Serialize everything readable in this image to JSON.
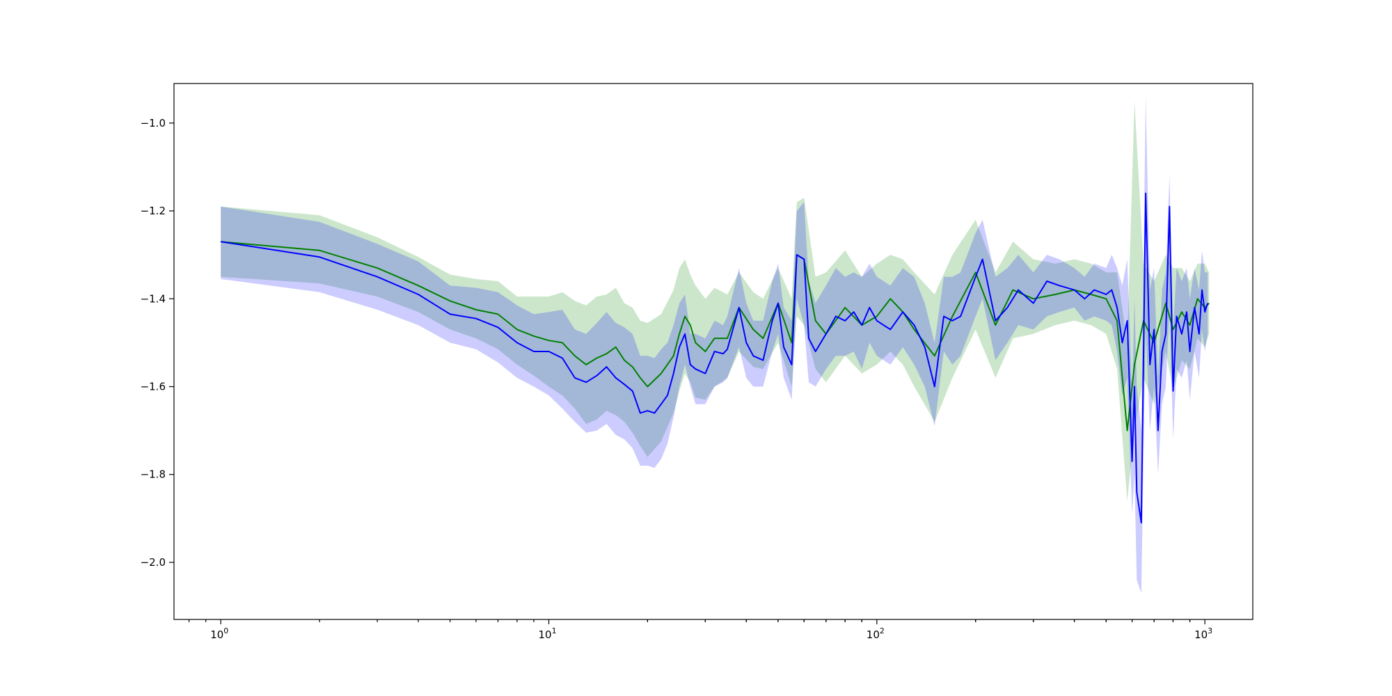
{
  "chart_data": {
    "type": "line",
    "title": "",
    "xlabel": "",
    "ylabel": "",
    "xscale": "log",
    "xlim": [
      0.72,
      1400
    ],
    "ylim": [
      -2.13,
      -0.91
    ],
    "grid": false,
    "legend": "none",
    "x_ticks": [
      {
        "value": 1,
        "base": "10",
        "exp": "0"
      },
      {
        "value": 10,
        "base": "10",
        "exp": "1"
      },
      {
        "value": 100,
        "base": "10",
        "exp": "2"
      },
      {
        "value": 1000,
        "base": "10",
        "exp": "3"
      }
    ],
    "y_ticks": [
      {
        "value": -1.0,
        "label": "−1.0"
      },
      {
        "value": -1.2,
        "label": "−1.2"
      },
      {
        "value": -1.4,
        "label": "−1.4"
      },
      {
        "value": -1.6,
        "label": "−1.6"
      },
      {
        "value": -1.8,
        "label": "−1.8"
      },
      {
        "value": -2.0,
        "label": "−2.0"
      }
    ],
    "series": [
      {
        "color": "#008000",
        "band_color": "#008000",
        "x": [
          1,
          2,
          3,
          4,
          5,
          6,
          7,
          8,
          9,
          10,
          11,
          12,
          13,
          14,
          15,
          16,
          17,
          18,
          19,
          20,
          22,
          24,
          25,
          26,
          27,
          28,
          30,
          32,
          35,
          38,
          42,
          45,
          50,
          55,
          57,
          60,
          65,
          70,
          80,
          90,
          100,
          110,
          120,
          130,
          150,
          170,
          200,
          230,
          260,
          300,
          350,
          400,
          450,
          500,
          540,
          580,
          610,
          650,
          700,
          760,
          800,
          850,
          900,
          950,
          1000,
          1030
        ],
        "y": [
          -1.27,
          -1.29,
          -1.33,
          -1.37,
          -1.405,
          -1.425,
          -1.435,
          -1.47,
          -1.485,
          -1.495,
          -1.5,
          -1.53,
          -1.55,
          -1.535,
          -1.525,
          -1.51,
          -1.54,
          -1.555,
          -1.58,
          -1.6,
          -1.57,
          -1.53,
          -1.48,
          -1.44,
          -1.46,
          -1.5,
          -1.52,
          -1.49,
          -1.49,
          -1.42,
          -1.47,
          -1.49,
          -1.41,
          -1.5,
          -1.3,
          -1.31,
          -1.45,
          -1.48,
          -1.42,
          -1.46,
          -1.44,
          -1.4,
          -1.43,
          -1.47,
          -1.53,
          -1.44,
          -1.34,
          -1.46,
          -1.38,
          -1.4,
          -1.39,
          -1.38,
          -1.39,
          -1.4,
          -1.45,
          -1.7,
          -1.55,
          -1.45,
          -1.5,
          -1.41,
          -1.47,
          -1.43,
          -1.46,
          -1.4,
          -1.42,
          -1.41
        ],
        "lower": [
          -1.35,
          -1.365,
          -1.395,
          -1.43,
          -1.47,
          -1.49,
          -1.515,
          -1.55,
          -1.575,
          -1.6,
          -1.62,
          -1.65,
          -1.685,
          -1.675,
          -1.655,
          -1.665,
          -1.68,
          -1.705,
          -1.735,
          -1.76,
          -1.725,
          -1.66,
          -1.61,
          -1.57,
          -1.59,
          -1.625,
          -1.63,
          -1.6,
          -1.58,
          -1.52,
          -1.555,
          -1.56,
          -1.5,
          -1.6,
          -1.44,
          -1.46,
          -1.56,
          -1.59,
          -1.53,
          -1.57,
          -1.55,
          -1.52,
          -1.55,
          -1.6,
          -1.68,
          -1.58,
          -1.47,
          -1.58,
          -1.49,
          -1.48,
          -1.46,
          -1.45,
          -1.46,
          -1.48,
          -1.56,
          -1.86,
          -1.7,
          -1.58,
          -1.64,
          -1.52,
          -1.61,
          -1.54,
          -1.56,
          -1.49,
          -1.51,
          -1.48
        ],
        "upper": [
          -1.19,
          -1.21,
          -1.26,
          -1.305,
          -1.345,
          -1.355,
          -1.36,
          -1.395,
          -1.395,
          -1.395,
          -1.385,
          -1.405,
          -1.415,
          -1.395,
          -1.39,
          -1.375,
          -1.41,
          -1.42,
          -1.45,
          -1.455,
          -1.435,
          -1.38,
          -1.33,
          -1.31,
          -1.345,
          -1.37,
          -1.4,
          -1.375,
          -1.39,
          -1.34,
          -1.385,
          -1.4,
          -1.33,
          -1.4,
          -1.18,
          -1.17,
          -1.35,
          -1.34,
          -1.29,
          -1.35,
          -1.32,
          -1.3,
          -1.31,
          -1.34,
          -1.39,
          -1.3,
          -1.22,
          -1.34,
          -1.27,
          -1.31,
          -1.32,
          -1.31,
          -1.32,
          -1.34,
          -1.34,
          -1.5,
          -0.95,
          -1.32,
          -1.36,
          -1.3,
          -1.33,
          -1.33,
          -1.36,
          -1.32,
          -1.32,
          -1.34
        ]
      },
      {
        "color": "#0000ff",
        "band_color": "#0000ff",
        "x": [
          1,
          2,
          3,
          4,
          5,
          6,
          7,
          8,
          9,
          10,
          11,
          12,
          13,
          14,
          15,
          16,
          17,
          18,
          19,
          20,
          21,
          22,
          23,
          24,
          25,
          26,
          27,
          28,
          30,
          32,
          34,
          35,
          38,
          40,
          42,
          45,
          48,
          50,
          52,
          55,
          57,
          60,
          62,
          65,
          70,
          75,
          80,
          85,
          90,
          95,
          100,
          110,
          120,
          130,
          140,
          150,
          160,
          170,
          180,
          200,
          210,
          230,
          250,
          270,
          300,
          330,
          360,
          400,
          430,
          460,
          500,
          520,
          540,
          560,
          580,
          600,
          610,
          620,
          640,
          660,
          680,
          700,
          720,
          740,
          760,
          780,
          800,
          820,
          850,
          880,
          900,
          930,
          960,
          980,
          1000,
          1020
        ],
        "y": [
          -1.27,
          -1.305,
          -1.35,
          -1.39,
          -1.435,
          -1.445,
          -1.465,
          -1.5,
          -1.52,
          -1.52,
          -1.535,
          -1.58,
          -1.59,
          -1.575,
          -1.555,
          -1.58,
          -1.595,
          -1.61,
          -1.66,
          -1.655,
          -1.66,
          -1.64,
          -1.62,
          -1.57,
          -1.51,
          -1.48,
          -1.55,
          -1.56,
          -1.57,
          -1.52,
          -1.525,
          -1.515,
          -1.42,
          -1.5,
          -1.53,
          -1.54,
          -1.45,
          -1.41,
          -1.51,
          -1.55,
          -1.3,
          -1.31,
          -1.49,
          -1.52,
          -1.48,
          -1.44,
          -1.45,
          -1.43,
          -1.46,
          -1.42,
          -1.45,
          -1.47,
          -1.43,
          -1.46,
          -1.51,
          -1.6,
          -1.44,
          -1.45,
          -1.44,
          -1.35,
          -1.31,
          -1.45,
          -1.42,
          -1.38,
          -1.41,
          -1.36,
          -1.37,
          -1.38,
          -1.4,
          -1.38,
          -1.39,
          -1.38,
          -1.42,
          -1.5,
          -1.45,
          -1.77,
          -1.6,
          -1.84,
          -1.91,
          -1.16,
          -1.55,
          -1.47,
          -1.7,
          -1.52,
          -1.48,
          -1.19,
          -1.61,
          -1.44,
          -1.48,
          -1.43,
          -1.52,
          -1.42,
          -1.48,
          -1.38,
          -1.43,
          -1.41
        ],
        "lower": [
          -1.355,
          -1.385,
          -1.425,
          -1.46,
          -1.5,
          -1.515,
          -1.545,
          -1.58,
          -1.6,
          -1.62,
          -1.65,
          -1.68,
          -1.705,
          -1.7,
          -1.685,
          -1.71,
          -1.72,
          -1.74,
          -1.78,
          -1.78,
          -1.785,
          -1.765,
          -1.73,
          -1.67,
          -1.6,
          -1.55,
          -1.6,
          -1.64,
          -1.64,
          -1.6,
          -1.59,
          -1.58,
          -1.51,
          -1.58,
          -1.6,
          -1.6,
          -1.52,
          -1.48,
          -1.58,
          -1.63,
          -1.4,
          -1.46,
          -1.59,
          -1.6,
          -1.56,
          -1.53,
          -1.53,
          -1.52,
          -1.56,
          -1.5,
          -1.53,
          -1.55,
          -1.51,
          -1.55,
          -1.6,
          -1.69,
          -1.52,
          -1.55,
          -1.53,
          -1.44,
          -1.4,
          -1.54,
          -1.5,
          -1.46,
          -1.47,
          -1.44,
          -1.43,
          -1.42,
          -1.45,
          -1.44,
          -1.45,
          -1.46,
          -1.52,
          -1.62,
          -1.58,
          -1.89,
          -1.8,
          -2.04,
          -2.07,
          -1.46,
          -1.7,
          -1.6,
          -1.8,
          -1.64,
          -1.6,
          -1.42,
          -1.72,
          -1.56,
          -1.58,
          -1.54,
          -1.63,
          -1.52,
          -1.58,
          -1.47,
          -1.52,
          -1.48
        ],
        "upper": [
          -1.19,
          -1.225,
          -1.275,
          -1.315,
          -1.37,
          -1.375,
          -1.385,
          -1.415,
          -1.435,
          -1.43,
          -1.425,
          -1.47,
          -1.48,
          -1.455,
          -1.43,
          -1.455,
          -1.465,
          -1.48,
          -1.53,
          -1.53,
          -1.535,
          -1.515,
          -1.5,
          -1.46,
          -1.41,
          -1.39,
          -1.48,
          -1.48,
          -1.49,
          -1.45,
          -1.46,
          -1.44,
          -1.33,
          -1.41,
          -1.45,
          -1.45,
          -1.36,
          -1.32,
          -1.42,
          -1.45,
          -1.2,
          -1.18,
          -1.36,
          -1.41,
          -1.37,
          -1.33,
          -1.35,
          -1.34,
          -1.35,
          -1.32,
          -1.35,
          -1.37,
          -1.33,
          -1.35,
          -1.41,
          -1.5,
          -1.35,
          -1.35,
          -1.34,
          -1.25,
          -1.22,
          -1.35,
          -1.33,
          -1.3,
          -1.34,
          -1.3,
          -1.31,
          -1.33,
          -1.35,
          -1.32,
          -1.33,
          -1.3,
          -1.33,
          -1.37,
          -1.31,
          -1.62,
          -1.4,
          -1.6,
          -1.7,
          -0.94,
          -1.38,
          -1.33,
          -1.58,
          -1.38,
          -1.34,
          -1.12,
          -1.47,
          -1.33,
          -1.36,
          -1.33,
          -1.4,
          -1.33,
          -1.38,
          -1.29,
          -1.34,
          -1.34
        ]
      }
    ]
  }
}
